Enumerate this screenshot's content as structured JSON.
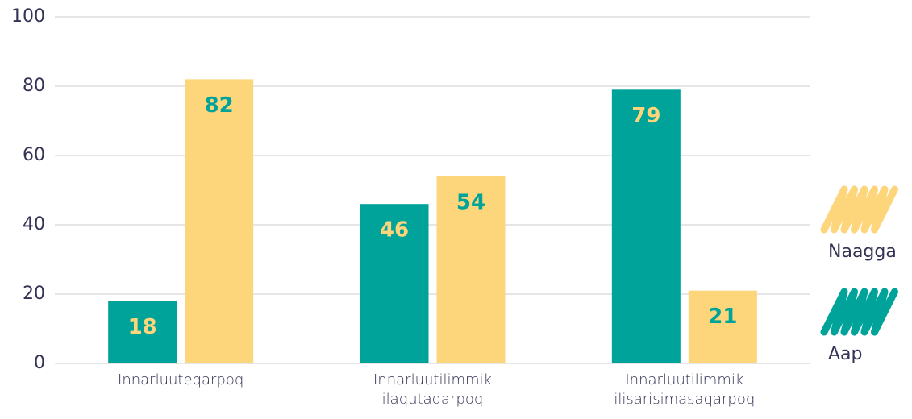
{
  "chart_data": {
    "type": "bar",
    "categories": [
      "Innarluuteqarpoq",
      "Innarluutilimmik ilaqutaqarpoq",
      "Innarluutilimmik ilisarisimasaqarpoq"
    ],
    "series": [
      {
        "name": "Aap",
        "color": "#00a39a",
        "values": [
          18,
          46,
          79
        ]
      },
      {
        "name": "Naagga",
        "color": "#fdd57a",
        "values": [
          82,
          54,
          21
        ]
      }
    ],
    "ylim": [
      0,
      100
    ],
    "yticks": [
      0,
      20,
      40,
      60,
      80,
      100
    ],
    "grid": true
  }
}
